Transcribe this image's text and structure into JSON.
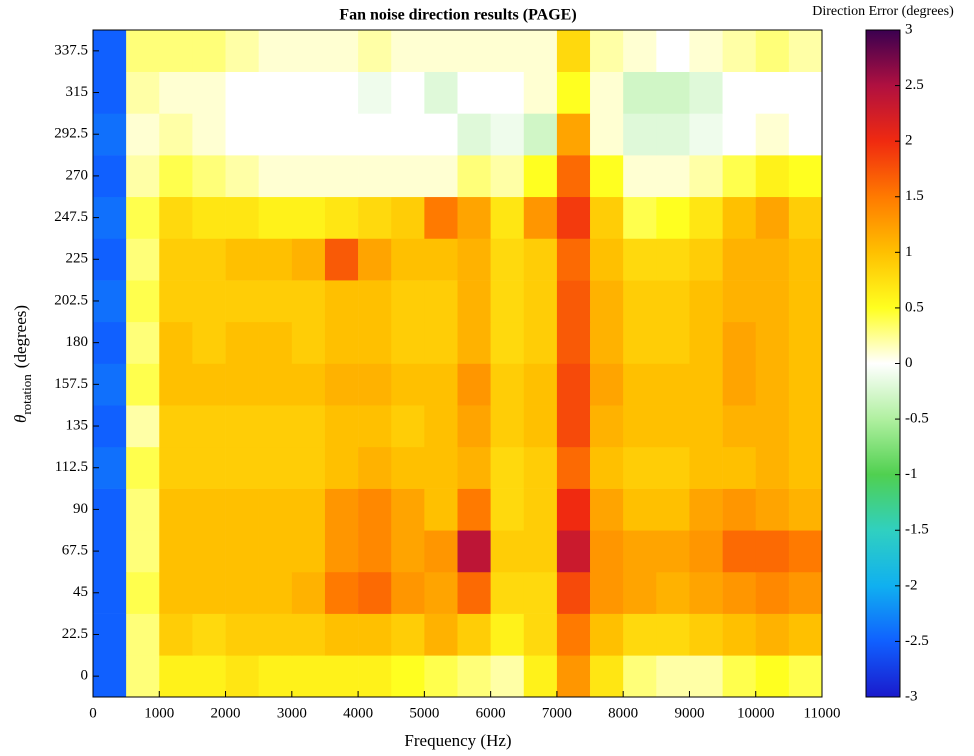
{
  "chart_data": {
    "type": "heatmap",
    "title": "Fan noise direction results (PAGE)",
    "xlabel": "Frequency (Hz)",
    "ylabel": "θ",
    "ylabel_sub": "rotation",
    "ylabel_unit": "(degrees)",
    "colorbar_label": "Direction Error (degrees)",
    "xlim": [
      0,
      11000
    ],
    "xticks": [
      0,
      1000,
      2000,
      3000,
      4000,
      5000,
      6000,
      7000,
      8000,
      9000,
      10000,
      11000
    ],
    "ylim": [
      -11.25,
      348.75
    ],
    "yticks": [
      0,
      22.5,
      45,
      67.5,
      90,
      112.5,
      135,
      157.5,
      180,
      202.5,
      225,
      247.5,
      270,
      292.5,
      315,
      337.5
    ],
    "clim": [
      -3,
      3
    ],
    "cticks": [
      -3,
      -2.5,
      -2,
      -1.5,
      -1,
      -0.5,
      0,
      0.5,
      1,
      1.5,
      2,
      2.5,
      3
    ],
    "colormap": [
      "#1a1acc",
      "#1060ff",
      "#10b0f0",
      "#30d0c0",
      "#50d050",
      "#b0f0a0",
      "#ffffff",
      "#ffff20",
      "#ffc000",
      "#ff7a00",
      "#f02a10",
      "#b01040",
      "#3a0050"
    ],
    "x": [
      250,
      750,
      1250,
      1750,
      2250,
      2750,
      3250,
      3750,
      4250,
      4750,
      5250,
      5750,
      6250,
      6750,
      7250,
      7750,
      8250,
      8750,
      9250,
      9750,
      10250,
      10750
    ],
    "y": [
      0,
      22.5,
      45,
      67.5,
      90,
      112.5,
      135,
      157.5,
      180,
      202.5,
      225,
      247.5,
      270,
      292.5,
      315,
      337.5
    ],
    "z": [
      [
        -2.5,
        0.3,
        0.6,
        0.6,
        0.7,
        0.6,
        0.6,
        0.6,
        0.6,
        0.5,
        0.4,
        0.3,
        0.2,
        0.6,
        1.3,
        0.7,
        0.3,
        0.2,
        0.2,
        0.4,
        0.5,
        0.4
      ],
      [
        -2.5,
        0.3,
        0.9,
        0.8,
        0.9,
        0.9,
        0.9,
        1.0,
        1.0,
        0.9,
        1.1,
        0.9,
        0.6,
        0.8,
        1.5,
        1.0,
        0.8,
        0.8,
        0.9,
        1.0,
        1.1,
        1.0
      ],
      [
        -2.5,
        0.4,
        1.0,
        1.0,
        1.0,
        1.0,
        1.1,
        1.5,
        1.6,
        1.3,
        1.2,
        1.6,
        0.8,
        0.8,
        1.8,
        1.3,
        1.2,
        1.1,
        1.2,
        1.3,
        1.4,
        1.3
      ],
      [
        -2.5,
        0.3,
        1.0,
        1.0,
        1.0,
        1.0,
        1.0,
        1.3,
        1.4,
        1.2,
        1.3,
        2.4,
        0.9,
        0.9,
        2.3,
        1.3,
        1.2,
        1.2,
        1.3,
        1.6,
        1.6,
        1.5
      ],
      [
        -2.5,
        0.3,
        1.0,
        1.0,
        1.0,
        1.0,
        1.0,
        1.3,
        1.4,
        1.2,
        1.0,
        1.5,
        0.8,
        0.9,
        2.0,
        1.2,
        1.0,
        1.0,
        1.2,
        1.3,
        1.2,
        1.1
      ],
      [
        -2.4,
        0.4,
        0.9,
        0.9,
        0.9,
        0.9,
        0.9,
        1.0,
        1.1,
        1.0,
        1.0,
        1.1,
        0.8,
        0.9,
        1.6,
        1.0,
        0.9,
        0.9,
        1.0,
        1.0,
        1.1,
        1.0
      ],
      [
        -2.5,
        0.2,
        0.9,
        0.9,
        0.9,
        0.9,
        0.9,
        1.0,
        1.0,
        0.9,
        1.0,
        1.2,
        0.9,
        1.0,
        1.8,
        1.1,
        1.0,
        1.0,
        1.0,
        1.1,
        1.1,
        1.0
      ],
      [
        -2.4,
        0.4,
        1.0,
        1.0,
        1.0,
        1.0,
        1.0,
        1.1,
        1.1,
        1.0,
        1.0,
        1.3,
        0.9,
        1.0,
        1.8,
        1.2,
        1.0,
        1.0,
        1.0,
        1.2,
        1.1,
        1.0
      ],
      [
        -2.5,
        0.3,
        1.0,
        0.9,
        1.0,
        1.0,
        0.9,
        1.0,
        1.0,
        0.9,
        0.9,
        1.1,
        0.8,
        0.9,
        1.7,
        1.1,
        0.9,
        0.9,
        1.0,
        1.2,
        1.1,
        1.0
      ],
      [
        -2.4,
        0.4,
        0.9,
        0.9,
        0.9,
        0.9,
        0.9,
        1.0,
        1.0,
        0.9,
        0.9,
        1.1,
        0.8,
        0.9,
        1.7,
        1.1,
        0.9,
        0.9,
        1.0,
        1.1,
        1.1,
        1.0
      ],
      [
        -2.5,
        0.3,
        0.9,
        0.9,
        1.0,
        1.0,
        1.1,
        1.7,
        1.2,
        1.0,
        1.0,
        1.1,
        0.8,
        0.9,
        1.6,
        1.0,
        0.8,
        0.8,
        0.9,
        1.1,
        1.1,
        1.0
      ],
      [
        -2.4,
        0.4,
        0.8,
        0.7,
        0.7,
        0.6,
        0.6,
        0.7,
        0.8,
        0.9,
        1.5,
        1.2,
        0.7,
        1.3,
        1.9,
        0.9,
        0.4,
        0.5,
        0.7,
        1.0,
        1.2,
        0.9
      ],
      [
        -2.5,
        0.2,
        0.4,
        0.3,
        0.2,
        0.1,
        0.1,
        0.1,
        0.1,
        0.1,
        0.1,
        0.3,
        0.2,
        0.5,
        1.6,
        0.5,
        0.1,
        0.1,
        0.2,
        0.4,
        0.6,
        0.5
      ],
      [
        -2.4,
        0.1,
        0.2,
        0.1,
        0.0,
        0.0,
        0.0,
        0.0,
        0.0,
        0.0,
        0.0,
        -0.2,
        -0.1,
        -0.3,
        1.2,
        0.1,
        -0.2,
        -0.2,
        -0.1,
        0.0,
        0.1,
        0.0
      ],
      [
        -2.5,
        0.2,
        0.1,
        0.1,
        0.0,
        0.0,
        0.0,
        0.0,
        -0.1,
        0.0,
        -0.2,
        0.0,
        0.0,
        0.1,
        0.5,
        0.1,
        -0.3,
        -0.3,
        -0.2,
        0.0,
        0.0,
        0.0
      ],
      [
        -2.5,
        0.3,
        0.3,
        0.3,
        0.2,
        0.1,
        0.1,
        0.1,
        0.2,
        0.1,
        0.1,
        0.1,
        0.1,
        0.1,
        0.8,
        0.2,
        0.1,
        0.0,
        0.1,
        0.2,
        0.3,
        0.2
      ]
    ]
  }
}
